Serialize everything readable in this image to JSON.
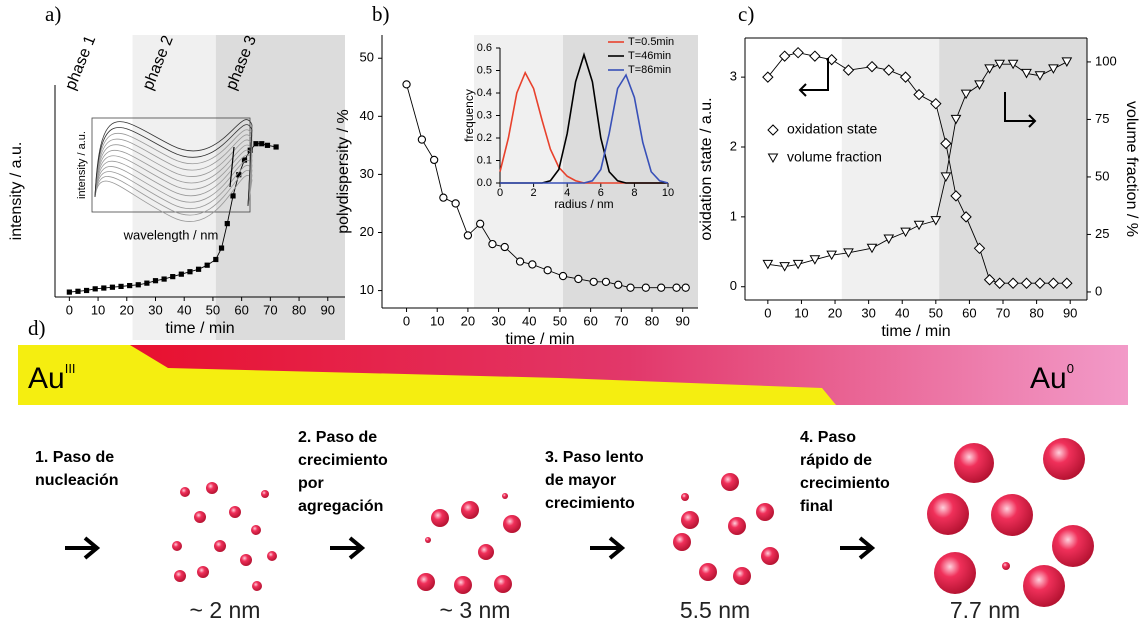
{
  "chart_data": [
    {
      "type": "line",
      "panel_label": "a)",
      "xlabel": "time / min",
      "ylabel": "intensity / a.u.",
      "x": [
        0,
        3,
        6,
        9,
        12,
        15,
        18,
        21,
        24,
        27,
        30,
        33,
        36,
        39,
        42,
        45,
        48,
        51,
        53,
        55,
        57,
        59,
        61,
        63,
        65,
        67,
        69,
        72
      ],
      "series": [
        {
          "color": "#000000",
          "marker": "square",
          "values": [
            3,
            3.5,
            4,
            5,
            5.5,
            6,
            6.5,
            7,
            7.5,
            8.5,
            10,
            11,
            12.5,
            14,
            15.5,
            17,
            19.5,
            23,
            30,
            45,
            62,
            75,
            84,
            90,
            94,
            94,
            93,
            92
          ]
        }
      ],
      "xlim": [
        -5,
        96
      ],
      "ylim": [
        0,
        130
      ],
      "xticks": [
        0,
        10,
        20,
        30,
        40,
        50,
        60,
        70,
        80,
        90
      ],
      "regions": [
        {
          "label": "phase 1",
          "range": [
            -5,
            22
          ],
          "color": "#ffffff"
        },
        {
          "label": "phase 2",
          "range": [
            22,
            51
          ],
          "color": "#f0f0f0"
        },
        {
          "label": "phase 3",
          "range": [
            51,
            96
          ],
          "color": "#dcdcdc"
        }
      ]
    },
    {
      "type": "line",
      "xlabel": "wavelength / nm",
      "ylabel": "intensity / a.u."
    },
    {
      "type": "line",
      "panel_label": "b)",
      "xlabel": "time / min",
      "ylabel": "polydispersity / %",
      "x": [
        0,
        5,
        9,
        12,
        16,
        20,
        24,
        28,
        32,
        37,
        41,
        46,
        51,
        56,
        61,
        65,
        69,
        73,
        78,
        83,
        88,
        91
      ],
      "series": [
        {
          "color": "#000000",
          "marker": "circle",
          "values": [
            45.5,
            36,
            32.5,
            26,
            25,
            19.5,
            21.5,
            18,
            17.5,
            15,
            14.5,
            13.5,
            12.5,
            12,
            11.5,
            11.5,
            11,
            10.5,
            10.5,
            10.5,
            10.5,
            10.5
          ]
        }
      ],
      "xlim": [
        -8,
        95
      ],
      "ylim": [
        7,
        54
      ],
      "xticks": [
        0,
        10,
        20,
        30,
        40,
        50,
        60,
        70,
        80,
        90
      ],
      "yticks": [
        10,
        20,
        30,
        40,
        50
      ],
      "regions": [
        {
          "range": [
            22,
            51
          ],
          "color": "#f0f0f0"
        },
        {
          "range": [
            51,
            95
          ],
          "color": "#dcdcdc"
        }
      ]
    },
    {
      "type": "line",
      "xlabel": "radius / nm",
      "ylabel": "frequency",
      "legend": "upper right",
      "x": [
        0,
        0.5,
        1,
        1.5,
        2,
        2.5,
        3,
        3.5,
        4,
        4.5,
        5,
        5.5,
        6,
        6.5,
        7,
        7.5,
        8,
        8.5,
        9,
        9.5,
        10
      ],
      "series": [
        {
          "name": "T=0.5min",
          "color": "#e8412c",
          "marker": "none",
          "values": [
            0.05,
            0.2,
            0.4,
            0.49,
            0.42,
            0.28,
            0.15,
            0.07,
            0.03,
            0.01,
            0,
            0,
            0,
            0,
            0,
            0,
            0,
            0,
            0,
            0,
            0
          ]
        },
        {
          "name": "T=46min",
          "color": "#000000",
          "marker": "none",
          "values": [
            0,
            0,
            0,
            0,
            0,
            0,
            0.01,
            0.06,
            0.22,
            0.45,
            0.57,
            0.45,
            0.2,
            0.05,
            0.01,
            0,
            0,
            0,
            0,
            0,
            0
          ]
        },
        {
          "name": "T=86min",
          "color": "#3850b8",
          "marker": "none",
          "values": [
            0,
            0,
            0,
            0,
            0,
            0,
            0,
            0,
            0,
            0,
            0,
            0.01,
            0.06,
            0.22,
            0.42,
            0.48,
            0.38,
            0.18,
            0.05,
            0.01,
            0
          ]
        }
      ],
      "xlim": [
        0,
        10
      ],
      "ylim": [
        0,
        0.6
      ],
      "xticks": [
        0,
        2,
        4,
        6,
        8,
        10
      ],
      "yticks": [
        {
          "value": 0,
          "label": "0.0"
        },
        0.1,
        0.2,
        0.3,
        0.4,
        0.5,
        0.6
      ]
    },
    {
      "type": "line",
      "panel_label": "c)",
      "xlabel": "time / min",
      "ylabel": "oxidation state / a.u.",
      "y2label": "volume fraction / %",
      "legend": "center left",
      "x": [
        0,
        5,
        9,
        14,
        19,
        24,
        31,
        36,
        41,
        45,
        50,
        53,
        56,
        59,
        63,
        66,
        69,
        73,
        77,
        81,
        85,
        89
      ],
      "series": [
        {
          "name": "oxidation state",
          "color": "#000000",
          "marker": "diamond",
          "values": [
            3.0,
            3.3,
            3.35,
            3.3,
            3.25,
            3.1,
            3.15,
            3.1,
            3.0,
            2.75,
            2.62,
            2.05,
            1.3,
            1.0,
            0.55,
            0.1,
            0.05,
            0.05,
            0.05,
            0.05,
            0.05,
            0.05
          ]
        },
        {
          "name": "volume fraction",
          "color": "#000000",
          "marker": "triangle-down",
          "axis": "y2",
          "values": [
            12,
            11,
            12,
            14,
            16,
            17,
            19,
            23,
            26,
            29,
            31,
            50,
            75,
            86,
            90,
            97,
            99,
            99,
            95,
            94,
            97,
            100
          ]
        }
      ],
      "xlim": [
        -6.8,
        95
      ],
      "ylim": [
        -0.19,
        3.56
      ],
      "y2lim": [
        -3.5,
        110.4
      ],
      "xticks": [
        0,
        10,
        20,
        30,
        40,
        50,
        60,
        70,
        80,
        90
      ],
      "yticks": [
        0,
        1,
        2,
        3
      ],
      "y2ticks": [
        0,
        25,
        50,
        75,
        100
      ],
      "regions": [
        {
          "range": [
            22,
            51
          ],
          "color": "#f0f0f0"
        },
        {
          "range": [
            51,
            95
          ],
          "color": "#dcdcdc"
        }
      ]
    }
  ],
  "diagram": {
    "panel_label": "d)",
    "start": {
      "base": "Au",
      "sup": "III"
    },
    "end": {
      "base": "Au",
      "sup": "0"
    },
    "steps": [
      {
        "lines": [
          "1. Paso de",
          "nucleación"
        ],
        "size": "~ 2 nm"
      },
      {
        "lines": [
          "2. Paso de",
          "crecimiento",
          "por",
          "agregación"
        ],
        "size": "~ 3 nm"
      },
      {
        "lines": [
          "3. Paso lento",
          "de  mayor",
          "crecimiento"
        ],
        "size": "5.5 nm"
      },
      {
        "lines": [
          "4. Paso",
          "rápido de",
          "crecimiento",
          "final"
        ],
        "size": "7.7 nm"
      }
    ]
  }
}
